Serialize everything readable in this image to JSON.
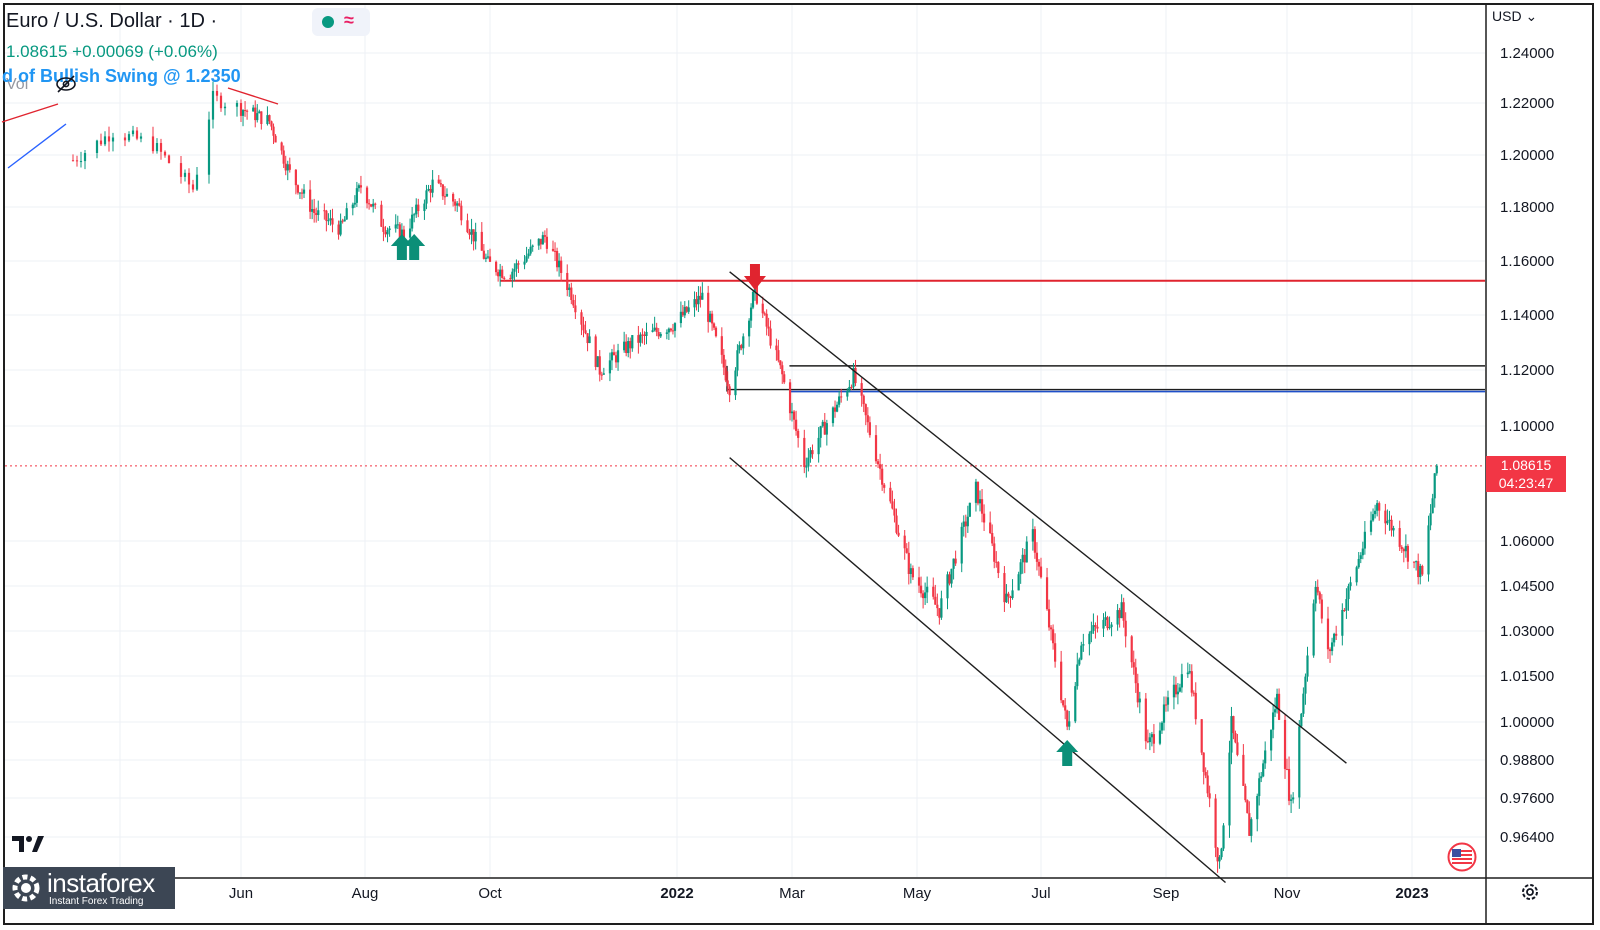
{
  "header": {
    "symbol_title": "Euro / U.S. Dollar · 1D ·",
    "price_line": "1.08615 +0.00069 (+0.06%)",
    "indicator_label": "d of Bullish Swing @ 1.2350",
    "volume_label": "Vol"
  },
  "price_scale": {
    "currency": "USD",
    "last_price": "1.08615",
    "countdown": "04:23:47"
  },
  "watermark": {
    "brand": "instaforex",
    "tagline": "Instant Forex Trading"
  },
  "icons": {
    "visibility": "eye-off-icon",
    "settings": "gear-icon",
    "flag": "us-flag-icon",
    "logo": "tradingview-logo-icon"
  },
  "colors": {
    "up": "#089981",
    "down": "#f23645",
    "resistance": "#e0242f",
    "support_blue": "#1e4fc9",
    "channel": "#1e1e1e"
  },
  "chart_data": {
    "type": "candlestick",
    "symbol": "EURUSD",
    "timeframe": "1D",
    "x_ticks": [
      "Jun",
      "Aug",
      "Oct",
      "2022",
      "Mar",
      "May",
      "Jul",
      "Sep",
      "Nov",
      "2023"
    ],
    "y_ticks": [
      "1.24000",
      "1.22000",
      "1.20000",
      "1.18000",
      "1.16000",
      "1.14000",
      "1.12000",
      "1.10000",
      "1.06000",
      "1.04500",
      "1.03000",
      "1.01500",
      "1.00000",
      "0.98800",
      "0.97600",
      "0.96400"
    ],
    "price_path": [
      [
        "2021-04-20",
        1.198
      ],
      [
        "2021-04-30",
        1.209
      ],
      [
        "2021-05-10",
        1.204
      ],
      [
        "2021-05-20",
        1.187
      ],
      [
        "2021-05-25",
        1.222
      ],
      [
        "2021-06-01",
        1.218
      ],
      [
        "2021-06-15",
        1.213
      ],
      [
        "2021-06-25",
        1.193
      ],
      [
        "2021-07-07",
        1.178
      ],
      [
        "2021-07-20",
        1.172
      ],
      [
        "2021-07-30",
        1.188
      ],
      [
        "2021-08-10",
        1.173
      ],
      [
        "2021-08-20",
        1.17
      ],
      [
        "2021-09-03",
        1.189
      ],
      [
        "2021-09-15",
        1.181
      ],
      [
        "2021-09-30",
        1.159
      ],
      [
        "2021-10-10",
        1.155
      ],
      [
        "2021-10-28",
        1.169
      ],
      [
        "2021-11-10",
        1.148
      ],
      [
        "2021-11-24",
        1.12
      ],
      [
        "2021-12-10",
        1.13
      ],
      [
        "2021-12-31",
        1.137
      ],
      [
        "2022-01-14",
        1.147
      ],
      [
        "2022-01-28",
        1.114
      ],
      [
        "2022-02-10",
        1.149
      ],
      [
        "2022-02-24",
        1.118
      ],
      [
        "2022-03-07",
        1.087
      ],
      [
        "2022-03-31",
        1.118
      ],
      [
        "2022-04-15",
        1.08
      ],
      [
        "2022-04-28",
        1.049
      ],
      [
        "2022-05-12",
        1.037
      ],
      [
        "2022-05-30",
        1.078
      ],
      [
        "2022-06-14",
        1.04
      ],
      [
        "2022-06-27",
        1.062
      ],
      [
        "2022-07-14",
        0.998
      ],
      [
        "2022-07-21",
        1.027
      ],
      [
        "2022-08-10",
        1.037
      ],
      [
        "2022-08-23",
        0.992
      ],
      [
        "2022-09-12",
        1.019
      ],
      [
        "2022-09-28",
        0.955
      ],
      [
        "2022-10-04",
        0.999
      ],
      [
        "2022-10-13",
        0.966
      ],
      [
        "2022-10-27",
        1.008
      ],
      [
        "2022-11-03",
        0.973
      ],
      [
        "2022-11-15",
        1.047
      ],
      [
        "2022-11-21",
        1.022
      ],
      [
        "2022-12-15",
        1.073
      ],
      [
        "2023-01-06",
        1.048
      ],
      [
        "2023-01-13",
        1.086
      ]
    ],
    "last": 1.08615,
    "last_change": 0.00069,
    "last_change_pct": 0.06,
    "levels": [
      {
        "price": 1.1527,
        "color": "red",
        "from": "2021-10-01"
      },
      {
        "price": 1.1123,
        "color": "blue",
        "from": "2022-02-01"
      },
      {
        "price": 1.1215,
        "color": "black",
        "from": "2022-02-01"
      }
    ],
    "channel": {
      "upper": [
        [
          "2022-01-28",
          1.156
        ],
        [
          "2022-11-30",
          0.987
        ]
      ],
      "lower": [
        [
          "2022-01-28",
          1.089
        ],
        [
          "2022-10-01",
          0.95
        ]
      ]
    },
    "signals": [
      {
        "date": "2021-08-19",
        "type": "buy"
      },
      {
        "date": "2021-08-25",
        "type": "buy"
      },
      {
        "date": "2022-02-10",
        "type": "sell"
      },
      {
        "date": "2022-07-14",
        "type": "buy"
      }
    ],
    "grid": true,
    "legend": "top-left"
  }
}
